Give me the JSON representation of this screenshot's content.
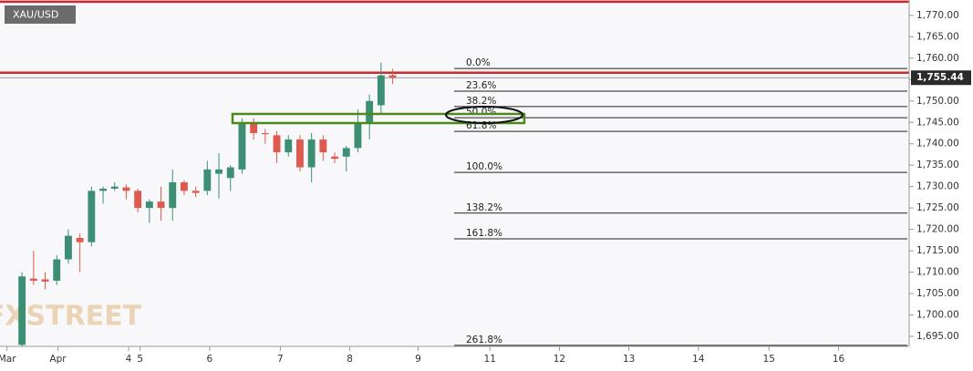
{
  "chart_data": {
    "type": "candlestick",
    "title": "XAU/USD",
    "watermark": "FXSTREET",
    "categories": [
      null,
      null,
      null,
      null,
      null,
      null,
      null,
      null,
      null,
      null,
      null,
      null,
      null,
      null,
      null,
      null,
      null,
      null,
      null,
      null,
      null,
      null,
      null,
      null,
      null,
      null,
      null,
      null,
      null,
      null,
      null,
      null,
      null
    ],
    "open": [
      1693,
      1708.5,
      1708.3,
      1708,
      1713,
      1718,
      1717,
      1729,
      1729.5,
      1729.8,
      1729,
      1725,
      1726.5,
      1725,
      1731,
      1729,
      1729,
      1733,
      1732,
      1734,
      1745,
      1742.5,
      1742,
      1738,
      1741,
      1734.5,
      1741,
      1737,
      1737,
      1739,
      1745,
      1749,
      1756
    ],
    "high": [
      1710,
      1715,
      1710,
      1714,
      1720,
      1719,
      1730,
      1730,
      1731,
      1730.5,
      1729.5,
      1727,
      1730,
      1734,
      1731.5,
      1730,
      1736,
      1737.8,
      1735,
      1746,
      1746,
      1743.5,
      1743,
      1742,
      1742,
      1742.5,
      1742,
      1738,
      1739.5,
      1748,
      1751.5,
      1759,
      1757.5
    ],
    "low": [
      1690,
      1707,
      1706,
      1707,
      1712,
      1710,
      1716,
      1726,
      1729,
      1727,
      1724,
      1721.5,
      1722,
      1722,
      1728,
      1727.5,
      1728,
      1727.2,
      1729,
      1733,
      1741,
      1740,
      1735.5,
      1737,
      1733.5,
      1731,
      1736,
      1735.5,
      1733.5,
      1738,
      1741,
      1747,
      1754
    ],
    "close": [
      1709,
      1708,
      1707.8,
      1713,
      1718.5,
      1717,
      1729,
      1729.5,
      1730,
      1729,
      1725,
      1726.5,
      1725,
      1731,
      1729,
      1728.5,
      1734,
      1734,
      1734.5,
      1745,
      1742.5,
      1742.3,
      1738,
      1741,
      1734.5,
      1741,
      1738,
      1736.5,
      1739,
      1745,
      1750,
      1756,
      1755.44
    ],
    "up_color": "#3d8f74",
    "down_color": "#df5a4e",
    "xlim": [
      -1.9,
      76.6
    ],
    "xticks": [
      {
        "value": -1.3,
        "label": "Mar"
      },
      {
        "value": 3.1,
        "label": "Apr"
      },
      {
        "value": 9.2,
        "label": "4"
      },
      {
        "value": 10.2,
        "label": "5"
      },
      {
        "value": 16.2,
        "label": "6"
      },
      {
        "value": 22.3,
        "label": "7"
      },
      {
        "value": 28.3,
        "label": "8"
      },
      {
        "value": 34.2,
        "label": "9"
      },
      {
        "value": 40.4,
        "label": "11"
      },
      {
        "value": 46.4,
        "label": "12"
      },
      {
        "value": 52.4,
        "label": "13"
      },
      {
        "value": 58.4,
        "label": "14"
      },
      {
        "value": 64.5,
        "label": "15"
      },
      {
        "value": 70.5,
        "label": "16"
      }
    ],
    "ylim": [
      1692.65,
      1773.6
    ],
    "yticks": [
      {
        "value": 1695,
        "label": "1,695.00"
      },
      {
        "value": 1700,
        "label": "1,700.00"
      },
      {
        "value": 1705,
        "label": "1,705.00"
      },
      {
        "value": 1710,
        "label": "1,710.00"
      },
      {
        "value": 1715,
        "label": "1,715.00"
      },
      {
        "value": 1720,
        "label": "1,720.00"
      },
      {
        "value": 1725,
        "label": "1,725.00"
      },
      {
        "value": 1730,
        "label": "1,730.00"
      },
      {
        "value": 1735,
        "label": "1,735.00"
      },
      {
        "value": 1740,
        "label": "1,740.00"
      },
      {
        "value": 1745,
        "label": "1,745.00"
      },
      {
        "value": 1750,
        "label": "1,750.00"
      },
      {
        "value": 1755,
        "label": "1,755.00"
      },
      {
        "value": 1760,
        "label": "1,760.00"
      },
      {
        "value": 1765,
        "label": "1,765.00"
      },
      {
        "value": 1770,
        "label": "1,770.00"
      }
    ],
    "last_price": {
      "value": 1755.44,
      "label": "1,755.44"
    },
    "levels": [
      {
        "value": 1773.2,
        "color": "#d62728"
      },
      {
        "value": 1756.6,
        "color": "#d62728"
      }
    ],
    "fib_levels": [
      {
        "value": 1757.6,
        "label": "0.0%"
      },
      {
        "value": 1752.3,
        "label": "23.6%"
      },
      {
        "value": 1748.7,
        "label": "38.2%"
      },
      {
        "value": 1746.1,
        "label": "50.0%"
      },
      {
        "value": 1742.9,
        "label": "61.8%"
      },
      {
        "value": 1733.3,
        "label": "100.0%"
      },
      {
        "value": 1723.8,
        "label": "138.2%"
      },
      {
        "value": 1717.8,
        "label": "161.8%"
      },
      {
        "value": 1692.9,
        "label": "261.8%"
      }
    ]
  }
}
